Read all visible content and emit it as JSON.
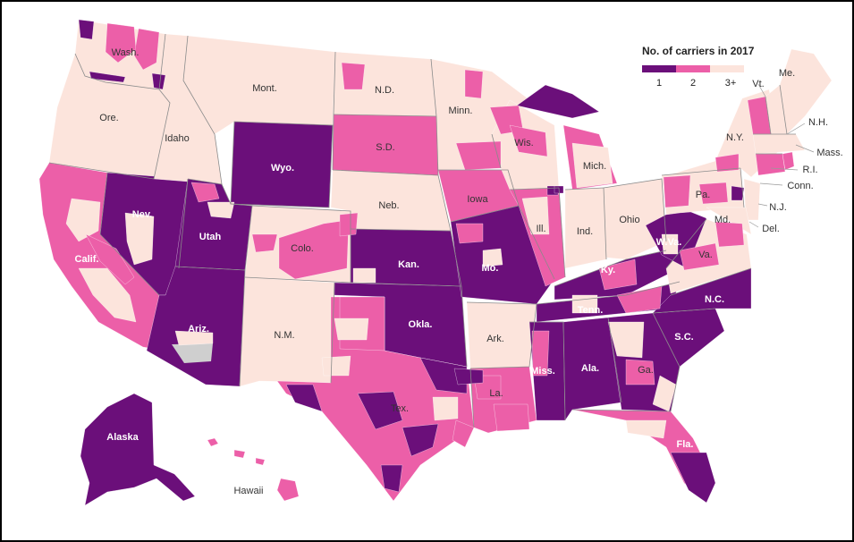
{
  "legend": {
    "title": "No. of carriers in 2017",
    "items": [
      {
        "label": "1",
        "color": "#6b0f7a"
      },
      {
        "label": "2",
        "color": "#ec5fa8"
      },
      {
        "label": "3+",
        "color": "#fce4dc"
      }
    ]
  },
  "colors": {
    "one_carrier": "#6b0f7a",
    "two_carriers": "#ec5fa8",
    "three_plus": "#fce4dc",
    "no_data": "#cfcfcf",
    "border": "#8a8a8a"
  },
  "states": [
    {
      "label": "Wash.",
      "carriers": "mixed-2"
    },
    {
      "label": "Ore.",
      "carriers": "3+"
    },
    {
      "label": "Calif.",
      "carriers": "mixed-2"
    },
    {
      "label": "Nev.",
      "carriers": "1"
    },
    {
      "label": "Idaho",
      "carriers": "3+"
    },
    {
      "label": "Mont.",
      "carriers": "3+"
    },
    {
      "label": "Wyo.",
      "carriers": "1"
    },
    {
      "label": "Utah",
      "carriers": "1"
    },
    {
      "label": "Ariz.",
      "carriers": "1"
    },
    {
      "label": "Colo.",
      "carriers": "mixed-2"
    },
    {
      "label": "N.M.",
      "carriers": "3+"
    },
    {
      "label": "N.D.",
      "carriers": "3+"
    },
    {
      "label": "S.D.",
      "carriers": "2"
    },
    {
      "label": "Neb.",
      "carriers": "3+"
    },
    {
      "label": "Kan.",
      "carriers": "1"
    },
    {
      "label": "Okla.",
      "carriers": "1"
    },
    {
      "label": "Tex.",
      "carriers": "mixed-2"
    },
    {
      "label": "Minn.",
      "carriers": "3+"
    },
    {
      "label": "Iowa",
      "carriers": "2"
    },
    {
      "label": "Mo.",
      "carriers": "1"
    },
    {
      "label": "Ark.",
      "carriers": "3+"
    },
    {
      "label": "La.",
      "carriers": "mixed-2"
    },
    {
      "label": "Wis.",
      "carriers": "mixed-2"
    },
    {
      "label": "Ill.",
      "carriers": "mixed-2"
    },
    {
      "label": "Miss.",
      "carriers": "1"
    },
    {
      "label": "Mich.",
      "carriers": "mixed-2"
    },
    {
      "label": "Ind.",
      "carriers": "3+"
    },
    {
      "label": "Ohio",
      "carriers": "3+"
    },
    {
      "label": "Ky.",
      "carriers": "mixed-1"
    },
    {
      "label": "Tenn.",
      "carriers": "1"
    },
    {
      "label": "Ala.",
      "carriers": "1"
    },
    {
      "label": "Ga.",
      "carriers": "mixed-1"
    },
    {
      "label": "Fla.",
      "carriers": "mixed-1"
    },
    {
      "label": "S.C.",
      "carriers": "1"
    },
    {
      "label": "N.C.",
      "carriers": "1"
    },
    {
      "label": "Va.",
      "carriers": "mixed-2"
    },
    {
      "label": "W.Va.",
      "carriers": "1"
    },
    {
      "label": "Md.",
      "carriers": "3+"
    },
    {
      "label": "Del.",
      "carriers": "3+"
    },
    {
      "label": "Pa.",
      "carriers": "mixed-2"
    },
    {
      "label": "N.J.",
      "carriers": "3+"
    },
    {
      "label": "N.Y.",
      "carriers": "3+"
    },
    {
      "label": "Conn.",
      "carriers": "3+"
    },
    {
      "label": "R.I.",
      "carriers": "3+"
    },
    {
      "label": "Mass.",
      "carriers": "3+"
    },
    {
      "label": "Vt.",
      "carriers": "2"
    },
    {
      "label": "N.H.",
      "carriers": "3+"
    },
    {
      "label": "Me.",
      "carriers": "3+"
    },
    {
      "label": "Alaska",
      "carriers": "1"
    },
    {
      "label": "Hawaii",
      "carriers": "2"
    }
  ]
}
